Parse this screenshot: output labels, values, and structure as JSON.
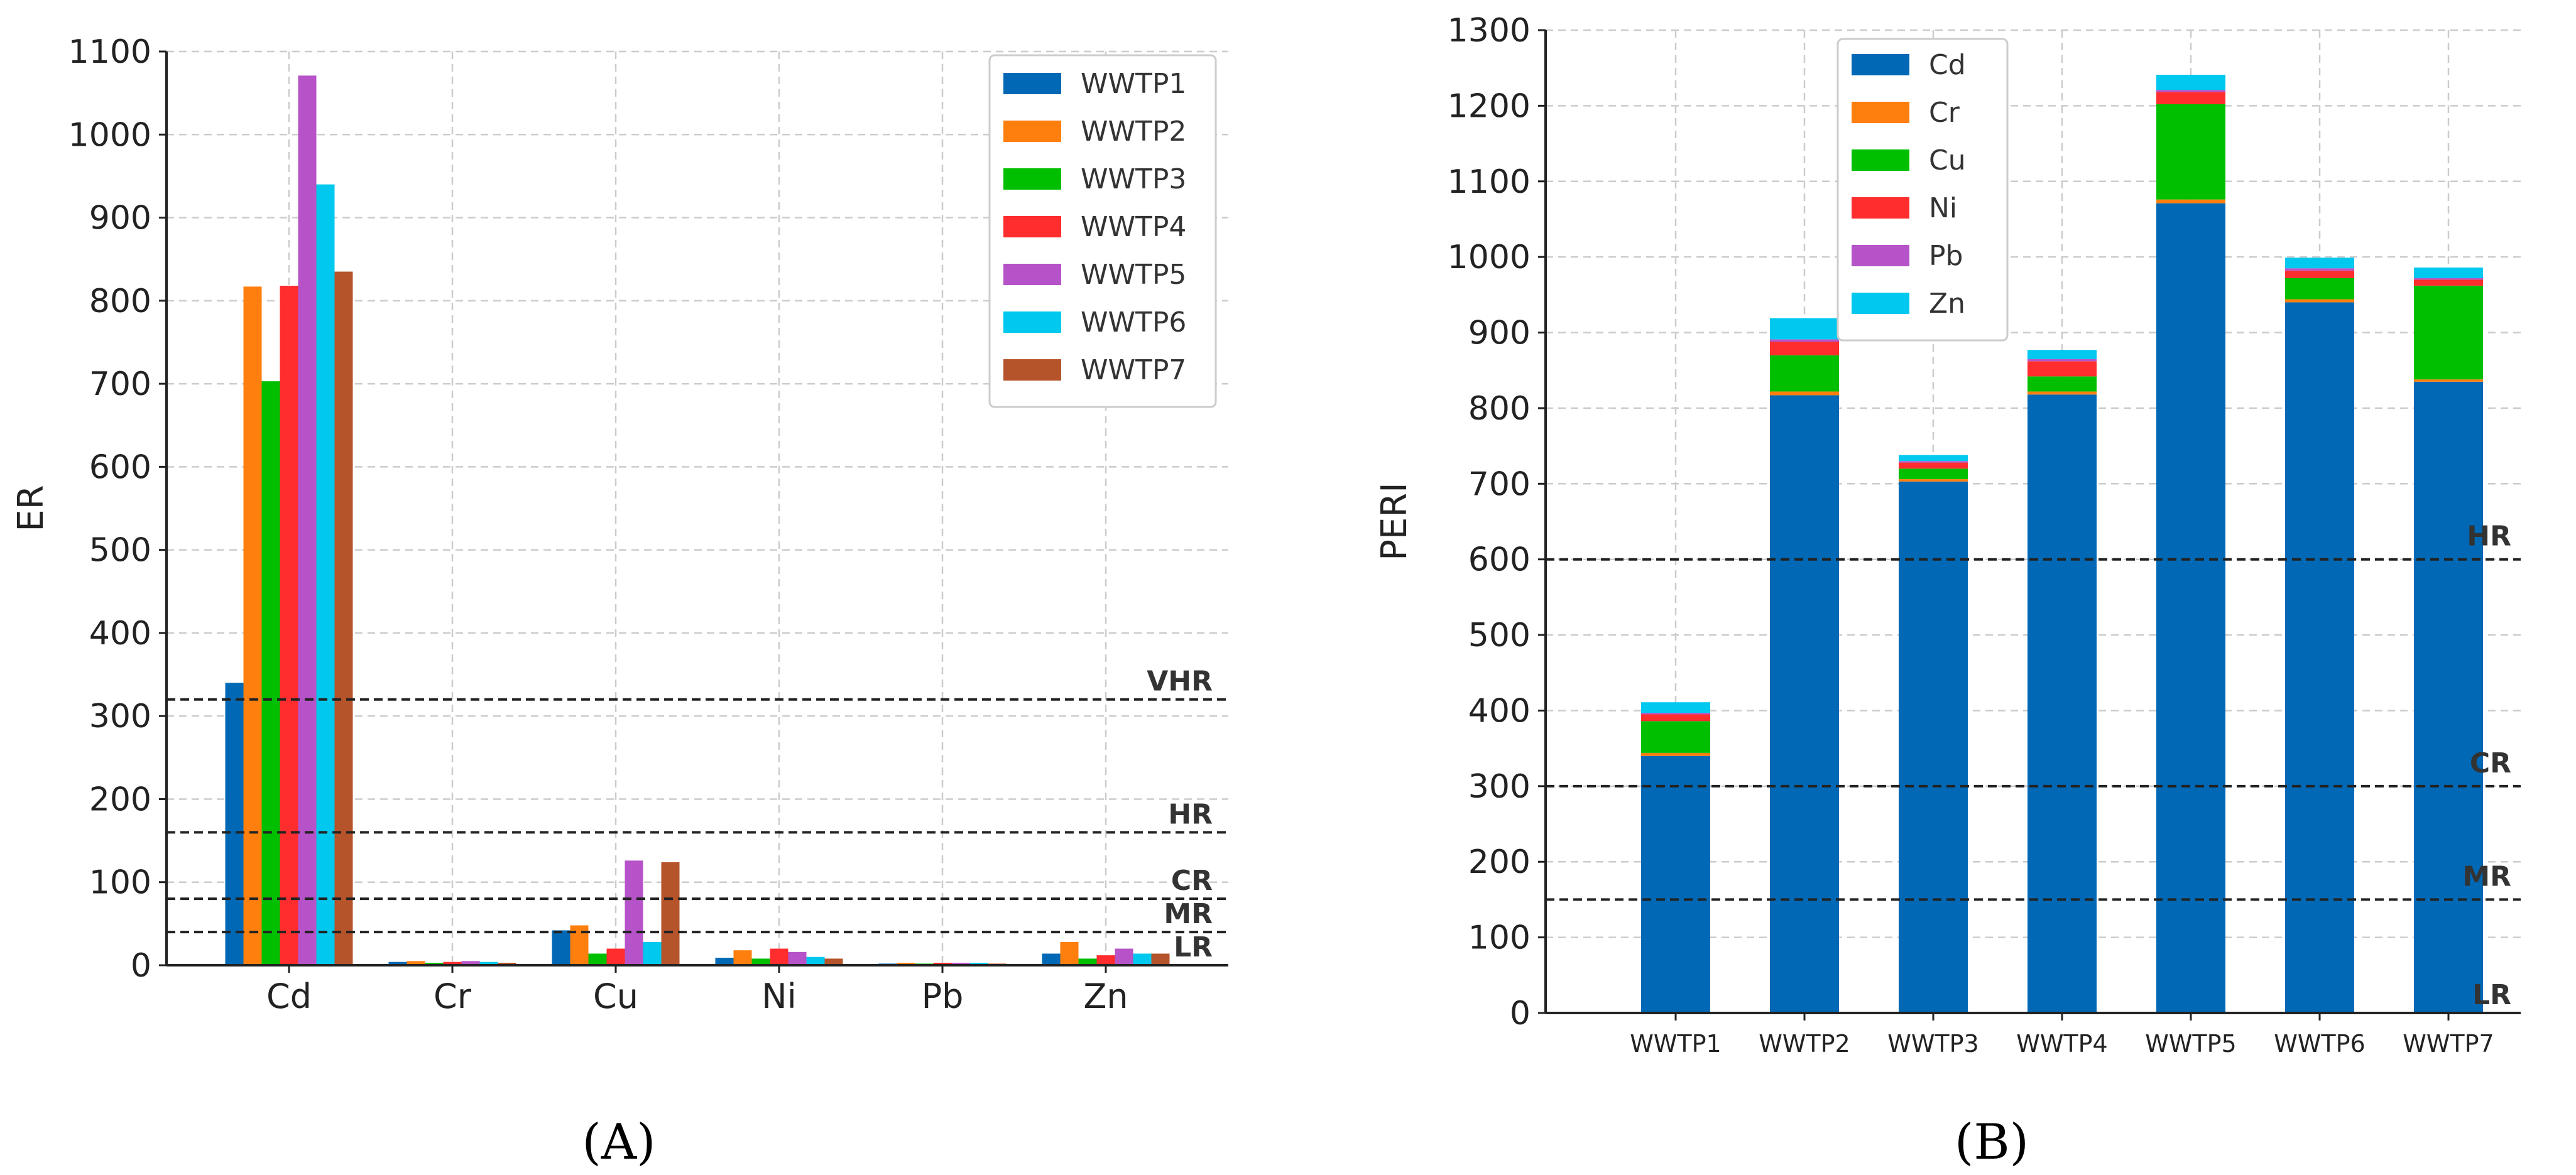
{
  "colors": {
    "WWTP1": "#0068B5",
    "WWTP2": "#FF7F0E",
    "WWTP3": "#00BF00",
    "WWTP4": "#FF2D2D",
    "WWTP5": "#B653C8",
    "WWTP6": "#00C8EE",
    "WWTP7": "#B5532A",
    "Cd": "#0068B5",
    "Cr": "#FF7F0E",
    "Cu": "#00BF00",
    "Ni": "#FF2D2D",
    "Pb": "#B653C8",
    "Zn": "#00C8EE",
    "grid": "#cccccc",
    "axis": "#222222",
    "threshold": "#222222"
  },
  "chart_data": [
    {
      "type": "bar",
      "panel_label": "(A)",
      "panel_letter": "A",
      "ylabel": "ER",
      "xlabel": "",
      "ylim": [
        0,
        1100
      ],
      "yticks": [
        0,
        100,
        200,
        300,
        400,
        500,
        600,
        700,
        800,
        900,
        1000,
        1100
      ],
      "grid": true,
      "legend_position": "top-right",
      "categories": [
        "Cd",
        "Cr",
        "Cu",
        "Ni",
        "Pb",
        "Zn"
      ],
      "series": [
        {
          "name": "WWTP1",
          "values": [
            340,
            4,
            42,
            9,
            2,
            14
          ]
        },
        {
          "name": "WWTP2",
          "values": [
            817,
            5,
            48,
            18,
            3,
            28
          ]
        },
        {
          "name": "WWTP3",
          "values": [
            703,
            3,
            14,
            8,
            2,
            8
          ]
        },
        {
          "name": "WWTP4",
          "values": [
            818,
            4,
            20,
            20,
            3,
            12
          ]
        },
        {
          "name": "WWTP5",
          "values": [
            1071,
            5,
            126,
            16,
            3,
            20
          ]
        },
        {
          "name": "WWTP6",
          "values": [
            940,
            4,
            28,
            10,
            3,
            14
          ]
        },
        {
          "name": "WWTP7",
          "values": [
            835,
            3,
            124,
            8,
            2,
            14
          ]
        }
      ],
      "thresholds": [
        {
          "label": "VHR",
          "value": 320
        },
        {
          "label": "HR",
          "value": 160
        },
        {
          "label": "CR",
          "value": 80
        },
        {
          "label": "MR",
          "value": 40
        },
        {
          "label": "LR",
          "value": 0
        }
      ]
    },
    {
      "type": "bar",
      "stacked": true,
      "panel_label": "(B)",
      "panel_letter": "B",
      "ylabel": "PERI",
      "xlabel": "",
      "ylim": [
        0,
        1300
      ],
      "yticks": [
        0,
        100,
        200,
        300,
        400,
        500,
        600,
        700,
        800,
        900,
        1000,
        1100,
        1200,
        1300
      ],
      "grid": true,
      "legend_position": "top-left",
      "categories": [
        "WWTP1",
        "WWTP2",
        "WWTP3",
        "WWTP4",
        "WWTP5",
        "WWTP6",
        "WWTP7"
      ],
      "series": [
        {
          "name": "Cd",
          "values": [
            340,
            817,
            703,
            818,
            1071,
            940,
            835
          ]
        },
        {
          "name": "Cr",
          "values": [
            4,
            5,
            3,
            4,
            5,
            4,
            3
          ]
        },
        {
          "name": "Cu",
          "values": [
            42,
            48,
            14,
            20,
            126,
            28,
            124
          ]
        },
        {
          "name": "Ni",
          "values": [
            9,
            18,
            8,
            20,
            16,
            10,
            8
          ]
        },
        {
          "name": "Pb",
          "values": [
            2,
            3,
            2,
            3,
            3,
            3,
            2
          ]
        },
        {
          "name": "Zn",
          "values": [
            14,
            28,
            8,
            12,
            20,
            14,
            14
          ]
        }
      ],
      "thresholds": [
        {
          "label": "HR",
          "value": 600
        },
        {
          "label": "CR",
          "value": 300
        },
        {
          "label": "MR",
          "value": 150
        },
        {
          "label": "LR",
          "value": 0
        }
      ]
    }
  ]
}
